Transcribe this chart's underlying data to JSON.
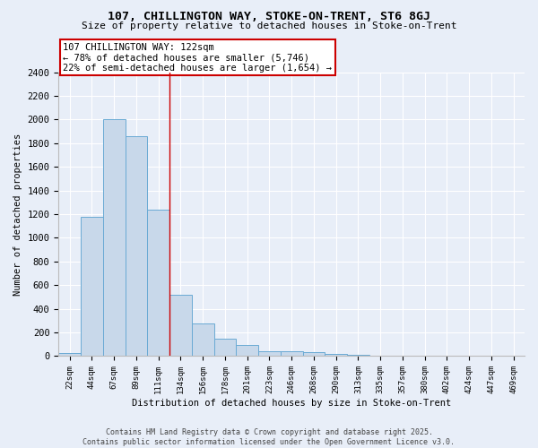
{
  "title1": "107, CHILLINGTON WAY, STOKE-ON-TRENT, ST6 8GJ",
  "title2": "Size of property relative to detached houses in Stoke-on-Trent",
  "xlabel": "Distribution of detached houses by size in Stoke-on-Trent",
  "ylabel": "Number of detached properties",
  "categories": [
    "22sqm",
    "44sqm",
    "67sqm",
    "89sqm",
    "111sqm",
    "134sqm",
    "156sqm",
    "178sqm",
    "201sqm",
    "223sqm",
    "246sqm",
    "268sqm",
    "290sqm",
    "313sqm",
    "335sqm",
    "357sqm",
    "380sqm",
    "402sqm",
    "424sqm",
    "447sqm",
    "469sqm"
  ],
  "values": [
    25,
    1175,
    2000,
    1860,
    1240,
    520,
    275,
    150,
    95,
    45,
    40,
    35,
    20,
    10,
    5,
    3,
    2,
    2,
    2,
    1,
    1
  ],
  "bar_color": "#c8d8ea",
  "bar_edge_color": "#6aaad4",
  "background_color": "#e8eef8",
  "grid_color": "#ffffff",
  "annotation_box_color": "#ffffff",
  "annotation_border_color": "#cc0000",
  "annotation_text": "107 CHILLINGTON WAY: 122sqm\n← 78% of detached houses are smaller (5,746)\n22% of semi-detached houses are larger (1,654) →",
  "vline_color": "#cc0000",
  "vline_x_index": 4,
  "ylim": [
    0,
    2400
  ],
  "yticks": [
    0,
    200,
    400,
    600,
    800,
    1000,
    1200,
    1400,
    1600,
    1800,
    2000,
    2200,
    2400
  ],
  "footer1": "Contains HM Land Registry data © Crown copyright and database right 2025.",
  "footer2": "Contains public sector information licensed under the Open Government Licence v3.0."
}
